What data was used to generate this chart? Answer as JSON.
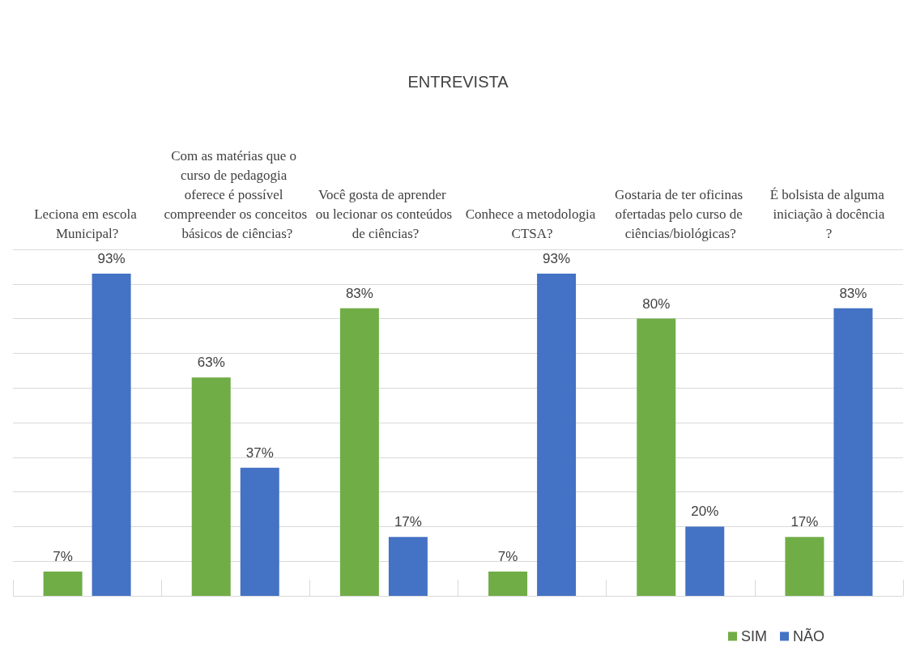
{
  "chart_data": {
    "type": "bar",
    "title": "ENTREVISTA",
    "categories": [
      "Leciona em escola Municipal?",
      "Com as matérias que o curso de pedagogia oferece é possível compreender os conceitos básicos de ciências?",
      "Você gosta de aprender ou lecionar os conteúdos de ciências?",
      "Conhece a metodologia CTSA?",
      "Gostaria de ter oficinas ofertadas pelo curso de ciências/biológicas?",
      "É bolsista de alguma iniciação à docência?"
    ],
    "series": [
      {
        "name": "SIM",
        "color": "#70ad47",
        "values": [
          7,
          63,
          83,
          7,
          80,
          17
        ],
        "value_labels": [
          "7%",
          "63%",
          "83%",
          "7%",
          "80%",
          "17%"
        ]
      },
      {
        "name": "NÃO",
        "color": "#4472c4",
        "values": [
          93,
          37,
          17,
          93,
          20,
          83
        ],
        "value_labels": [
          "93%",
          "37%",
          "17%",
          "93%",
          "20%",
          "83%"
        ]
      }
    ],
    "ylim": [
      0,
      100
    ],
    "yticks": [
      {
        "value": 0,
        "label": null
      },
      {
        "value": 10,
        "label": null
      },
      {
        "value": 20,
        "label": null
      },
      {
        "value": 30,
        "label": null
      },
      {
        "value": 40,
        "label": null
      },
      {
        "value": 50,
        "label": null
      },
      {
        "value": 60,
        "label": null
      },
      {
        "value": 70,
        "label": null
      },
      {
        "value": 80,
        "label": null
      },
      {
        "value": 90,
        "label": null
      },
      {
        "value": 100,
        "label": null
      }
    ],
    "tick_labels": "x",
    "grid": "y",
    "legend": "bottom right"
  }
}
